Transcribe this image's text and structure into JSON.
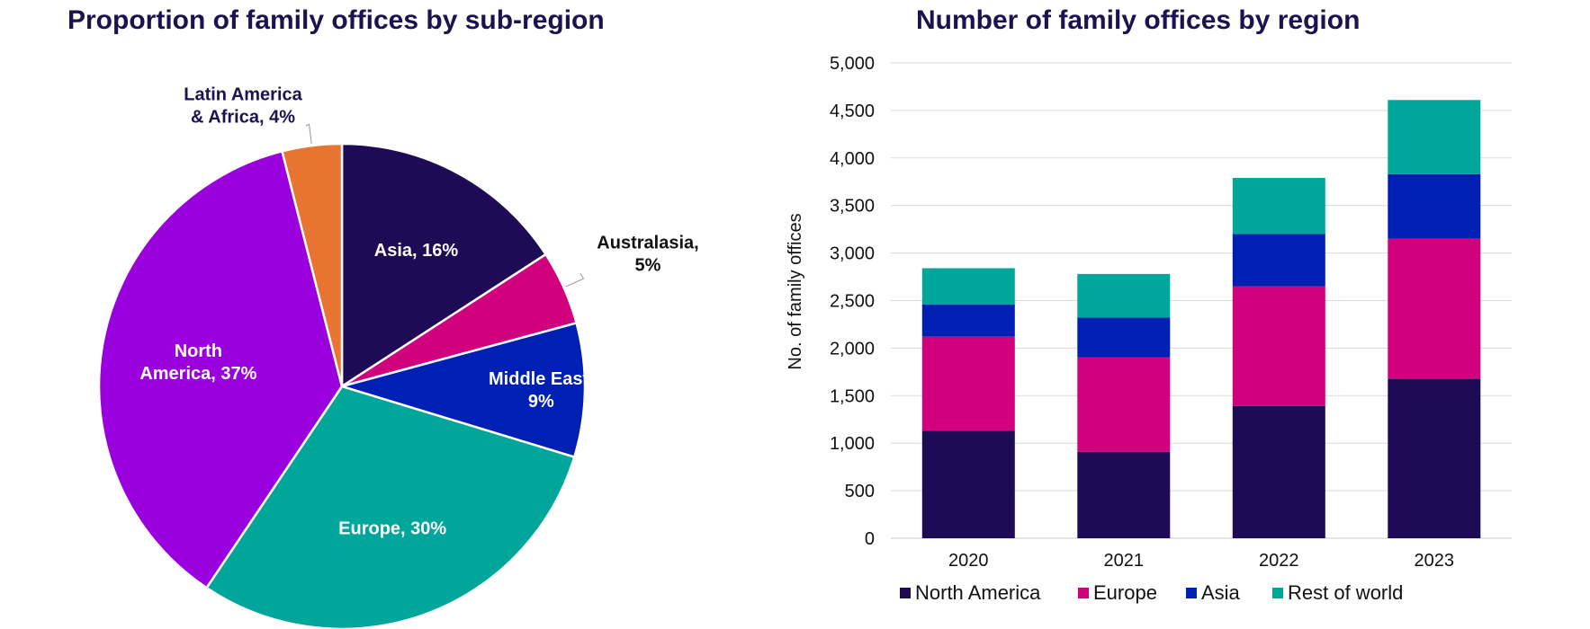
{
  "chart_data": [
    {
      "type": "pie",
      "title": "Proportion of family offices by sub-region",
      "slices": [
        {
          "key": "asia",
          "label_lines": [
            "Asia, 16%"
          ],
          "value": 16,
          "color": "#1E0A55"
        },
        {
          "key": "australasia",
          "label_lines": [
            "Australasia,",
            "5%"
          ],
          "value": 5,
          "color": "#D1007D"
        },
        {
          "key": "middle_east",
          "label_lines": [
            "Middle East,",
            "9%"
          ],
          "value": 9,
          "color": "#0020B3"
        },
        {
          "key": "europe",
          "label_lines": [
            "Europe, 30%"
          ],
          "value": 30,
          "color": "#00A699"
        },
        {
          "key": "north_america",
          "label_lines": [
            "North",
            "America, 37%"
          ],
          "value": 37,
          "color": "#9900DD"
        },
        {
          "key": "latin_america_africa",
          "label_lines": [
            "Latin America",
            "& Africa, 4%"
          ],
          "value": 4,
          "color": "#E87432"
        }
      ]
    },
    {
      "type": "bar",
      "stacked": true,
      "title": "Number of family offices by region",
      "ylabel": "No. of  family offices",
      "categories": [
        "2020",
        "2021",
        "2022",
        "2023"
      ],
      "ylim": [
        0,
        5000
      ],
      "yticks": [
        0,
        500,
        1000,
        1500,
        2000,
        2500,
        3000,
        3500,
        4000,
        4500,
        5000
      ],
      "ytick_labels": [
        "0",
        "500",
        "1,000",
        "1,500",
        "2,000",
        "2,500",
        "3,000",
        "3,500",
        "4,000",
        "4,500",
        "5,000"
      ],
      "grid": true,
      "legend_position": "bottom",
      "series": [
        {
          "name": "North America",
          "color": "#1E0A55",
          "values": [
            1130,
            910,
            1390,
            1680
          ]
        },
        {
          "name": "Europe",
          "color": "#D1007D",
          "values": [
            990,
            990,
            1260,
            1470
          ]
        },
        {
          "name": "Asia",
          "color": "#0020B3",
          "values": [
            340,
            420,
            550,
            680
          ]
        },
        {
          "name": "Rest of world",
          "color": "#00A699",
          "values": [
            380,
            460,
            590,
            780
          ]
        }
      ]
    }
  ]
}
